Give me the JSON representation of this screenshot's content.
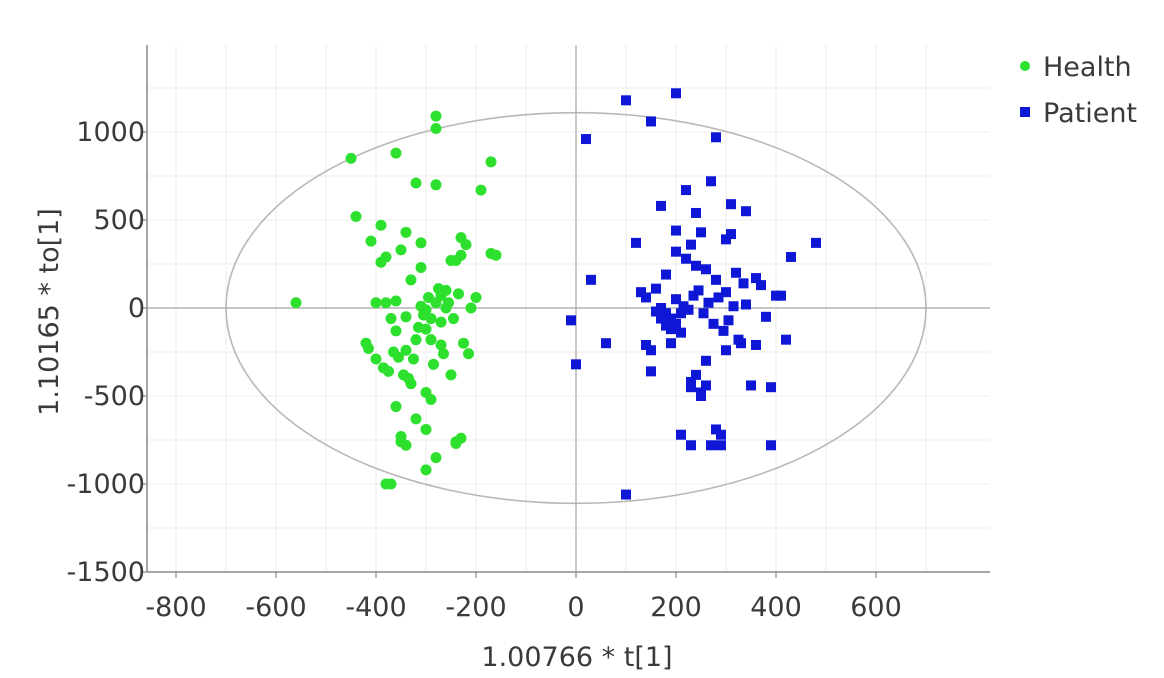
{
  "chart_data": {
    "type": "scatter",
    "title": "",
    "xlabel": "1.00766 * t[1]",
    "ylabel": "1.10165 * to[1]",
    "xlim": [
      -800,
      750
    ],
    "ylim": [
      -1500,
      1500
    ],
    "x_ticks": [
      "-800",
      "-600",
      "-400",
      "-200",
      "0",
      "200",
      "400",
      "600"
    ],
    "y_ticks": [
      "-1500",
      "-1000",
      "-500",
      "0",
      "500",
      "1000"
    ],
    "grid": true,
    "legend_position": "top-right",
    "ellipse": {
      "cx": 0,
      "cy": 0,
      "rx": 700,
      "ry": 1110
    },
    "series": [
      {
        "name": "Health",
        "color": "#2de02d",
        "marker": "circle",
        "points": [
          [
            -560,
            30
          ],
          [
            -450,
            850
          ],
          [
            -440,
            520
          ],
          [
            -410,
            380
          ],
          [
            -400,
            30
          ],
          [
            -390,
            260
          ],
          [
            -390,
            470
          ],
          [
            -380,
            290
          ],
          [
            -380,
            -1000
          ],
          [
            -370,
            -1000
          ],
          [
            -360,
            880
          ],
          [
            -360,
            40
          ],
          [
            -360,
            -560
          ],
          [
            -350,
            330
          ],
          [
            -350,
            -730
          ],
          [
            -340,
            430
          ],
          [
            -340,
            -240
          ],
          [
            -330,
            -430
          ],
          [
            -320,
            710
          ],
          [
            -310,
            370
          ],
          [
            -310,
            230
          ],
          [
            -300,
            -690
          ],
          [
            -300,
            -920
          ],
          [
            -280,
            1090
          ],
          [
            -280,
            1020
          ],
          [
            -280,
            700
          ],
          [
            -280,
            -850
          ],
          [
            -270,
            70
          ],
          [
            -270,
            -210
          ],
          [
            -260,
            0
          ],
          [
            -250,
            -380
          ],
          [
            -240,
            -760
          ],
          [
            -230,
            300
          ],
          [
            -230,
            400
          ],
          [
            -220,
            360
          ],
          [
            -210,
            0
          ],
          [
            -200,
            60
          ],
          [
            -190,
            670
          ],
          [
            -170,
            830
          ],
          [
            -170,
            310
          ],
          [
            -160,
            300
          ],
          [
            -420,
            -200
          ],
          [
            -415,
            -230
          ],
          [
            -400,
            -290
          ],
          [
            -385,
            -340
          ],
          [
            -375,
            -360
          ],
          [
            -365,
            -250
          ],
          [
            -355,
            -280
          ],
          [
            -345,
            -380
          ],
          [
            -335,
            -400
          ],
          [
            -325,
            -290
          ],
          [
            -315,
            -110
          ],
          [
            -305,
            -40
          ],
          [
            -300,
            -10
          ],
          [
            -295,
            60
          ],
          [
            -290,
            -60
          ],
          [
            -285,
            -320
          ],
          [
            -275,
            110
          ],
          [
            -265,
            -260
          ],
          [
            -255,
            30
          ],
          [
            -245,
            -60
          ],
          [
            -240,
            270
          ],
          [
            -235,
            80
          ],
          [
            -225,
            -200
          ],
          [
            -215,
            -260
          ],
          [
            -380,
            30
          ],
          [
            -370,
            -60
          ],
          [
            -360,
            -130
          ],
          [
            -340,
            -50
          ],
          [
            -330,
            160
          ],
          [
            -320,
            -180
          ],
          [
            -310,
            10
          ],
          [
            -300,
            -120
          ],
          [
            -290,
            -180
          ],
          [
            -280,
            30
          ],
          [
            -270,
            -80
          ],
          [
            -260,
            100
          ],
          [
            -250,
            270
          ],
          [
            -240,
            -770
          ],
          [
            -230,
            -740
          ],
          [
            -350,
            -760
          ],
          [
            -340,
            -780
          ],
          [
            -320,
            -630
          ],
          [
            -300,
            -480
          ],
          [
            -290,
            -520
          ]
        ]
      },
      {
        "name": "Patient",
        "color": "#0f17d6",
        "marker": "square",
        "points": [
          [
            -10,
            -70
          ],
          [
            0,
            -320
          ],
          [
            20,
            960
          ],
          [
            30,
            160
          ],
          [
            60,
            -200
          ],
          [
            100,
            1180
          ],
          [
            100,
            -1060
          ],
          [
            120,
            370
          ],
          [
            130,
            90
          ],
          [
            140,
            60
          ],
          [
            140,
            -210
          ],
          [
            150,
            -360
          ],
          [
            150,
            1060
          ],
          [
            160,
            110
          ],
          [
            170,
            580
          ],
          [
            170,
            0
          ],
          [
            180,
            -30
          ],
          [
            180,
            -100
          ],
          [
            190,
            -60
          ],
          [
            190,
            -200
          ],
          [
            200,
            1220
          ],
          [
            200,
            440
          ],
          [
            200,
            50
          ],
          [
            210,
            -140
          ],
          [
            210,
            -720
          ],
          [
            220,
            280
          ],
          [
            220,
            670
          ],
          [
            230,
            -450
          ],
          [
            230,
            -780
          ],
          [
            240,
            540
          ],
          [
            240,
            240
          ],
          [
            250,
            -480
          ],
          [
            250,
            430
          ],
          [
            260,
            -440
          ],
          [
            260,
            220
          ],
          [
            270,
            720
          ],
          [
            270,
            -780
          ],
          [
            280,
            970
          ],
          [
            280,
            160
          ],
          [
            280,
            -690
          ],
          [
            290,
            -720
          ],
          [
            290,
            -780
          ],
          [
            300,
            90
          ],
          [
            300,
            -240
          ],
          [
            310,
            590
          ],
          [
            310,
            420
          ],
          [
            320,
            200
          ],
          [
            330,
            -200
          ],
          [
            340,
            550
          ],
          [
            340,
            20
          ],
          [
            350,
            -440
          ],
          [
            360,
            170
          ],
          [
            370,
            130
          ],
          [
            380,
            -50
          ],
          [
            390,
            -450
          ],
          [
            390,
            -780
          ],
          [
            400,
            70
          ],
          [
            410,
            70
          ],
          [
            420,
            -180
          ],
          [
            430,
            290
          ],
          [
            480,
            370
          ],
          [
            160,
            -20
          ],
          [
            170,
            -60
          ],
          [
            180,
            -80
          ],
          [
            190,
            -120
          ],
          [
            200,
            -90
          ],
          [
            210,
            -30
          ],
          [
            215,
            10
          ],
          [
            225,
            -10
          ],
          [
            235,
            70
          ],
          [
            245,
            100
          ],
          [
            255,
            -30
          ],
          [
            265,
            30
          ],
          [
            275,
            -90
          ],
          [
            285,
            60
          ],
          [
            295,
            -130
          ],
          [
            305,
            -70
          ],
          [
            315,
            10
          ],
          [
            325,
            -180
          ],
          [
            335,
            140
          ],
          [
            230,
            -420
          ],
          [
            240,
            -380
          ],
          [
            250,
            -500
          ],
          [
            260,
            -300
          ],
          [
            200,
            320
          ],
          [
            180,
            190
          ],
          [
            150,
            -240
          ],
          [
            230,
            360
          ],
          [
            300,
            390
          ],
          [
            360,
            -210
          ]
        ]
      }
    ]
  }
}
